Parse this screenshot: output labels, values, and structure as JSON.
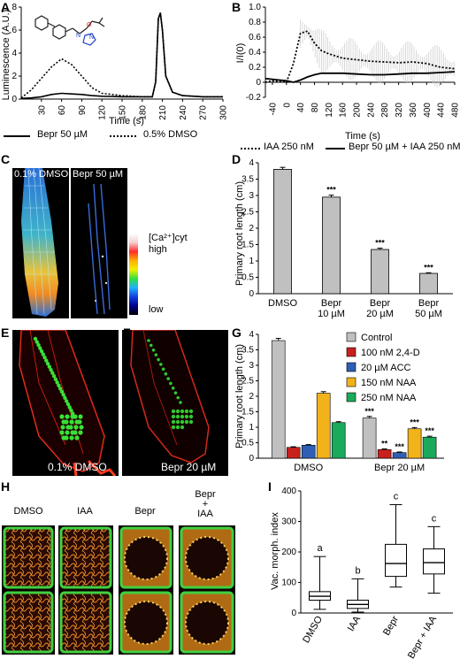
{
  "panels": {
    "a": "A",
    "b": "B",
    "c": "C",
    "d": "D",
    "e": "E",
    "f": "F",
    "g": "G",
    "h": "H",
    "i": "I"
  },
  "panel_a": {
    "ylabel": "Luminescence (A.U.)",
    "xlabel": "Time (s)",
    "yticks": [
      "0",
      "2",
      "4",
      "6",
      "8"
    ],
    "xticks": [
      "30",
      "60",
      "90",
      "120",
      "150",
      "180",
      "210",
      "240",
      "270",
      "300"
    ],
    "legend": [
      {
        "label": "Bepr 50 µM",
        "style": "solid"
      },
      {
        "label": "0.5% DMSO",
        "style": "dotted"
      }
    ],
    "chart_data": {
      "type": "line",
      "xlabel": "Time (s)",
      "ylabel": "Luminescence (A.U.)",
      "xlim": [
        0,
        300
      ],
      "ylim": [
        0,
        8
      ],
      "series": [
        {
          "name": "Bepr 50 µM",
          "x": [
            0,
            15,
            30,
            45,
            60,
            75,
            90,
            105,
            120,
            150,
            180,
            195,
            200,
            204,
            207,
            210,
            215,
            225,
            240,
            270,
            300
          ],
          "y": [
            0.05,
            0.1,
            0.2,
            0.4,
            0.5,
            0.45,
            0.4,
            0.3,
            0.25,
            0.2,
            0.2,
            0.2,
            1.5,
            7.0,
            7.5,
            6.0,
            2.0,
            0.6,
            0.3,
            0.2,
            0.2
          ]
        },
        {
          "name": "0.5% DMSO",
          "x": [
            0,
            15,
            30,
            45,
            60,
            75,
            90,
            105,
            120,
            150,
            180,
            195,
            200,
            204,
            207,
            210,
            215,
            225,
            240,
            270,
            300
          ],
          "y": [
            0.1,
            0.8,
            1.8,
            2.8,
            3.5,
            3.0,
            2.0,
            1.0,
            0.5,
            0.3,
            0.2,
            0.2,
            1.5,
            7.0,
            7.5,
            6.0,
            2.0,
            0.6,
            0.3,
            0.2,
            0.2
          ]
        }
      ]
    }
  },
  "panel_b": {
    "ylabel": "I/I(0)",
    "xlabel": "Time (s)",
    "yticks": [
      "-0.2",
      "0",
      "0.2",
      "0.4",
      "0.6",
      "0.8",
      "1.0"
    ],
    "xticks": [
      "-40",
      "0",
      "40",
      "80",
      "120",
      "160",
      "200",
      "240",
      "280",
      "320",
      "360",
      "400",
      "440",
      "480"
    ],
    "legend": [
      {
        "label": "IAA 250 nM",
        "style": "dotted"
      },
      {
        "label": "Bepr 50 µM + IAA 250 nM",
        "style": "solid"
      }
    ],
    "chart_data": {
      "type": "line",
      "xlabel": "Time (s)",
      "ylabel": "I/I(0)",
      "xlim": [
        -60,
        480
      ],
      "ylim": [
        -0.2,
        1.0
      ],
      "series": [
        {
          "name": "IAA 250 nM",
          "x": [
            -60,
            -40,
            -20,
            0,
            20,
            40,
            60,
            80,
            100,
            120,
            160,
            200,
            240,
            280,
            320,
            360,
            400,
            440,
            480
          ],
          "y": [
            0,
            0.02,
            0.01,
            0.0,
            0.25,
            0.65,
            0.68,
            0.52,
            0.42,
            0.38,
            0.32,
            0.3,
            0.28,
            0.27,
            0.26,
            0.27,
            0.25,
            0.2,
            0.18
          ]
        },
        {
          "name": "Bepr 50 µM + IAA 250 nM",
          "x": [
            -60,
            -40,
            -20,
            0,
            20,
            40,
            60,
            80,
            100,
            120,
            160,
            200,
            240,
            280,
            320,
            360,
            400,
            440,
            480
          ],
          "y": [
            0.05,
            0.04,
            0.03,
            0.02,
            0.0,
            0.03,
            0.07,
            0.1,
            0.12,
            0.12,
            0.12,
            0.11,
            0.1,
            0.1,
            0.11,
            0.12,
            0.12,
            0.13,
            0.14
          ]
        }
      ]
    }
  },
  "panel_c": {
    "left_caption": "0.1% DMSO",
    "right_caption": "Bepr 50 µM",
    "scale_title": "[Ca²⁺]cyt",
    "scale_high": "high",
    "scale_low": "low"
  },
  "panel_d": {
    "ylabel": "Primary root length (cm)",
    "yticks": [
      "0",
      "0.5",
      "1",
      "1.5",
      "2",
      "2.5",
      "3",
      "3.5",
      "4"
    ],
    "chart_data": {
      "type": "bar",
      "categories": [
        "DMSO",
        "Bepr 10 µM",
        "Bepr 20 µM",
        "Bepr 50 µM"
      ],
      "category_lines": [
        [
          "DMSO"
        ],
        [
          "Bepr",
          "10 µM"
        ],
        [
          "Bepr",
          "20 µM"
        ],
        [
          "Bepr",
          "50 µM"
        ]
      ],
      "values": [
        3.8,
        2.95,
        1.35,
        0.62
      ],
      "errors": [
        0.06,
        0.06,
        0.04,
        0.02
      ],
      "annotations": [
        "",
        "***",
        "***",
        "***"
      ],
      "ylabel": "Primary root length (cm)",
      "ylim": [
        0,
        4
      ],
      "bar_color": "#c0c0c0"
    }
  },
  "panel_e": {
    "caption": "0.1% DMSO"
  },
  "panel_f": {
    "caption": "Bepr 20 µM"
  },
  "panel_g": {
    "ylabel": "Primary root length (cm)",
    "yticks": [
      "0",
      "0.5",
      "1",
      "1.5",
      "2",
      "2.5",
      "3",
      "3.5",
      "4"
    ],
    "chart_data": {
      "type": "bar",
      "groups": [
        "DMSO",
        "Bepr 20 µM"
      ],
      "ylim": [
        0,
        4
      ],
      "ylabel": "Primary root length (cm)",
      "series": [
        {
          "name": "Control",
          "color": "#c0c0c0",
          "values": [
            3.8,
            1.3
          ],
          "errors": [
            0.07,
            0.05
          ],
          "annotations": [
            "",
            "***"
          ]
        },
        {
          "name": "100 nM 2,4-D",
          "color": "#c8201e",
          "values": [
            0.35,
            0.28
          ],
          "errors": [
            0.02,
            0.02
          ],
          "annotations": [
            "",
            "**"
          ]
        },
        {
          "name": "20 µM ACC",
          "color": "#2f5fb4",
          "values": [
            0.42,
            0.18
          ],
          "errors": [
            0.02,
            0.02
          ],
          "annotations": [
            "",
            "***"
          ]
        },
        {
          "name": "150 nM NAA",
          "color": "#f2b21a",
          "values": [
            2.1,
            0.95
          ],
          "errors": [
            0.05,
            0.04
          ],
          "annotations": [
            "",
            "***"
          ]
        },
        {
          "name": "250 nM NAA",
          "color": "#1aaa5c",
          "values": [
            1.15,
            0.68
          ],
          "errors": [
            0.03,
            0.03
          ],
          "annotations": [
            "",
            "***"
          ]
        }
      ]
    }
  },
  "panel_h": {
    "captions": [
      [
        "DMSO"
      ],
      [
        "IAA"
      ],
      [
        "Bepr"
      ],
      [
        "Bepr",
        "+",
        "IAA"
      ]
    ]
  },
  "panel_i": {
    "ylabel": "Vac. morph. index",
    "yticks": [
      "0",
      "100",
      "200",
      "300",
      "400"
    ],
    "chart_data": {
      "type": "box",
      "categories": [
        "DMSO",
        "IAA",
        "Bepr",
        "Bepr + IAA"
      ],
      "ylabel": "Vac. morph. index",
      "ylim": [
        0,
        400
      ],
      "boxes": [
        {
          "min": 12,
          "q1": 42,
          "median": 55,
          "q3": 70,
          "max": 185,
          "letter": "a"
        },
        {
          "min": 3,
          "q1": 15,
          "median": 28,
          "q3": 42,
          "max": 112,
          "letter": "b"
        },
        {
          "min": 85,
          "q1": 120,
          "median": 162,
          "q3": 225,
          "max": 355,
          "letter": "c"
        },
        {
          "min": 65,
          "q1": 128,
          "median": 165,
          "q3": 210,
          "max": 283,
          "letter": "c"
        }
      ]
    }
  }
}
